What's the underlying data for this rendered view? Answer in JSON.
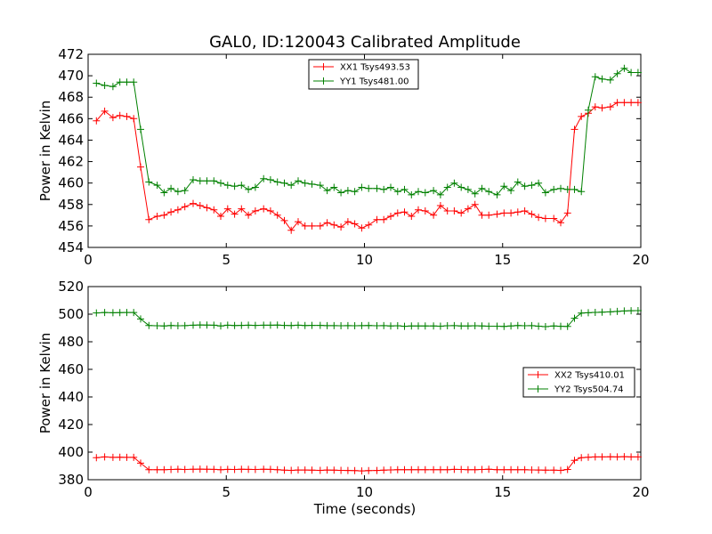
{
  "figure_title": "GAL0, ID:120043 Calibrated Amplitude",
  "chart_data": [
    {
      "type": "line",
      "xlabel": "",
      "ylabel": "Power in Kelvin",
      "xlim": [
        0,
        20
      ],
      "ylim": [
        454,
        472
      ],
      "xticks": [
        0,
        5,
        10,
        15,
        20
      ],
      "yticks": [
        454,
        456,
        458,
        460,
        462,
        464,
        466,
        468,
        470,
        472
      ],
      "grid": false,
      "legend_position": "top-center",
      "x": [
        0.3,
        0.6,
        0.9,
        1.15,
        1.4,
        1.65,
        1.9,
        2.2,
        2.5,
        2.75,
        3.0,
        3.25,
        3.5,
        3.8,
        4.05,
        4.3,
        4.55,
        4.8,
        5.05,
        5.3,
        5.55,
        5.8,
        6.05,
        6.35,
        6.6,
        6.85,
        7.1,
        7.35,
        7.6,
        7.85,
        8.1,
        8.4,
        8.65,
        8.9,
        9.15,
        9.4,
        9.65,
        9.9,
        10.15,
        10.45,
        10.7,
        10.95,
        11.2,
        11.45,
        11.7,
        11.95,
        12.2,
        12.5,
        12.75,
        13.0,
        13.25,
        13.5,
        13.75,
        14.0,
        14.25,
        14.5,
        14.8,
        15.05,
        15.3,
        15.55,
        15.8,
        16.05,
        16.3,
        16.55,
        16.85,
        17.1,
        17.35,
        17.6,
        17.85,
        18.1,
        18.35,
        18.6,
        18.9,
        19.15,
        19.4,
        19.65,
        19.9
      ],
      "series": [
        {
          "name": "XX1 Tsys493.53",
          "color": "#ff0000",
          "values": [
            465.8,
            466.7,
            466.1,
            466.3,
            466.2,
            466.0,
            461.5,
            456.6,
            456.9,
            457.0,
            457.3,
            457.5,
            457.8,
            458.1,
            457.9,
            457.7,
            457.5,
            456.9,
            457.6,
            457.1,
            457.6,
            457.0,
            457.4,
            457.6,
            457.4,
            457.0,
            456.5,
            455.6,
            456.4,
            456.0,
            456.0,
            456.0,
            456.3,
            456.1,
            455.9,
            456.4,
            456.2,
            455.8,
            456.1,
            456.6,
            456.6,
            456.9,
            457.2,
            457.3,
            456.9,
            457.5,
            457.4,
            457.0,
            457.9,
            457.4,
            457.4,
            457.2,
            457.6,
            458.0,
            457.0,
            457.0,
            457.1,
            457.2,
            457.2,
            457.3,
            457.4,
            457.1,
            456.8,
            456.7,
            456.7,
            456.3,
            457.2,
            465.0,
            466.2,
            466.5,
            467.1,
            467.0,
            467.1,
            467.5,
            467.5,
            467.5,
            467.5
          ]
        },
        {
          "name": "YY1 Tsys481.00",
          "color": "#008000",
          "values": [
            469.3,
            469.1,
            469.0,
            469.4,
            469.4,
            469.4,
            465.0,
            460.1,
            459.8,
            459.1,
            459.5,
            459.2,
            459.3,
            460.3,
            460.2,
            460.2,
            460.2,
            460.0,
            459.8,
            459.7,
            459.8,
            459.4,
            459.6,
            460.4,
            460.3,
            460.1,
            460.0,
            459.8,
            460.2,
            460.0,
            459.9,
            459.8,
            459.3,
            459.6,
            459.1,
            459.3,
            459.2,
            459.6,
            459.5,
            459.5,
            459.4,
            459.6,
            459.2,
            459.4,
            458.9,
            459.2,
            459.1,
            459.3,
            458.9,
            459.6,
            460.0,
            459.6,
            459.4,
            459.0,
            459.5,
            459.2,
            458.9,
            459.7,
            459.3,
            460.1,
            459.7,
            459.8,
            460.0,
            459.1,
            459.4,
            459.5,
            459.4,
            459.4,
            459.2,
            466.8,
            469.9,
            469.7,
            469.6,
            470.2,
            470.7,
            470.3,
            470.3
          ]
        }
      ]
    },
    {
      "type": "line",
      "xlabel": "Time (seconds)",
      "ylabel": "Power in Kelvin",
      "xlim": [
        0,
        20
      ],
      "ylim": [
        380,
        520
      ],
      "xticks": [
        0,
        5,
        10,
        15,
        20
      ],
      "yticks": [
        380,
        400,
        420,
        440,
        460,
        480,
        500,
        520
      ],
      "grid": false,
      "legend_position": "center-right",
      "x": [
        0.3,
        0.6,
        0.9,
        1.15,
        1.4,
        1.65,
        1.9,
        2.2,
        2.5,
        2.75,
        3.0,
        3.25,
        3.5,
        3.8,
        4.05,
        4.3,
        4.55,
        4.8,
        5.05,
        5.3,
        5.55,
        5.8,
        6.05,
        6.35,
        6.6,
        6.85,
        7.1,
        7.35,
        7.6,
        7.85,
        8.1,
        8.4,
        8.65,
        8.9,
        9.15,
        9.4,
        9.65,
        9.9,
        10.15,
        10.45,
        10.7,
        10.95,
        11.2,
        11.45,
        11.7,
        11.95,
        12.2,
        12.5,
        12.75,
        13.0,
        13.25,
        13.5,
        13.75,
        14.0,
        14.25,
        14.5,
        14.8,
        15.05,
        15.3,
        15.55,
        15.8,
        16.05,
        16.3,
        16.55,
        16.85,
        17.1,
        17.35,
        17.6,
        17.85,
        18.1,
        18.35,
        18.6,
        18.9,
        19.15,
        19.4,
        19.65,
        19.9
      ],
      "series": [
        {
          "name": "XX2 Tsys410.01",
          "color": "#ff0000",
          "values": [
            396.0,
            396.5,
            396.2,
            396.3,
            396.2,
            396.2,
            392.0,
            387.2,
            387.3,
            387.2,
            387.4,
            387.6,
            387.4,
            387.6,
            387.7,
            387.6,
            387.5,
            387.2,
            387.5,
            387.4,
            387.6,
            387.5,
            387.4,
            387.6,
            387.5,
            387.2,
            386.9,
            386.8,
            387.0,
            387.0,
            386.9,
            386.8,
            387.0,
            386.9,
            386.8,
            386.7,
            386.6,
            386.4,
            386.6,
            386.7,
            386.9,
            387.1,
            387.3,
            387.2,
            387.3,
            387.2,
            387.2,
            387.3,
            387.3,
            387.2,
            387.5,
            387.4,
            387.3,
            387.3,
            387.4,
            387.6,
            387.3,
            387.2,
            387.3,
            387.3,
            387.2,
            387.1,
            387.0,
            386.9,
            386.9,
            386.8,
            387.4,
            394.0,
            396.0,
            396.3,
            396.5,
            396.5,
            396.6,
            396.5,
            396.7,
            396.5,
            396.5
          ]
        },
        {
          "name": "YY2 Tsys504.74",
          "color": "#008000",
          "values": [
            500.9,
            501.2,
            501.0,
            501.1,
            501.2,
            501.2,
            496.5,
            491.8,
            491.6,
            491.5,
            491.8,
            491.6,
            491.7,
            492.0,
            492.2,
            492.1,
            492.0,
            491.5,
            492.0,
            491.8,
            491.9,
            492.0,
            491.9,
            492.0,
            492.0,
            492.1,
            491.9,
            491.8,
            492.0,
            491.8,
            491.9,
            491.9,
            491.7,
            491.7,
            491.6,
            491.7,
            491.6,
            491.7,
            491.8,
            491.6,
            491.7,
            491.4,
            491.6,
            491.2,
            491.4,
            491.4,
            491.5,
            491.4,
            491.3,
            491.6,
            491.7,
            491.5,
            491.4,
            491.6,
            491.5,
            491.3,
            491.3,
            491.1,
            491.5,
            491.8,
            491.6,
            491.7,
            491.3,
            491.0,
            491.4,
            491.2,
            491.1,
            497.0,
            500.8,
            501.0,
            501.3,
            501.5,
            501.7,
            502.0,
            502.3,
            502.5,
            502.6
          ]
        }
      ]
    }
  ]
}
